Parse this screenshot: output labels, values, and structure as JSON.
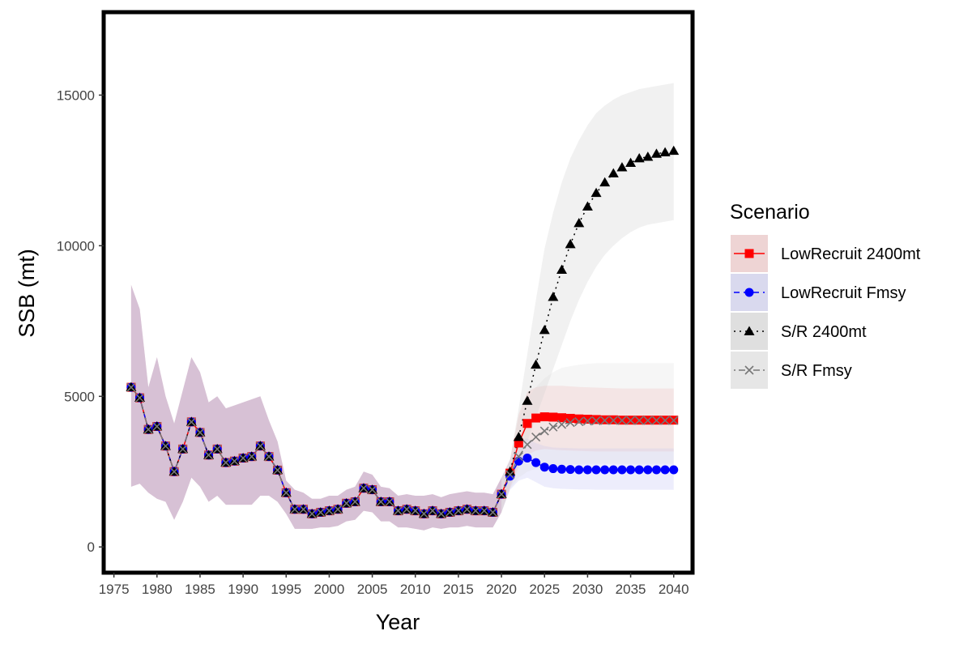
{
  "chart_data": {
    "type": "line",
    "xlabel": "Year",
    "ylabel": "SSB (mt)",
    "xlim": [
      1974,
      2042
    ],
    "ylim": [
      -800,
      17700
    ],
    "x_ticks": [
      "1975",
      "1980",
      "1985",
      "1990",
      "1995",
      "2000",
      "2005",
      "2010",
      "2015",
      "2020",
      "2025",
      "2030",
      "2035",
      "2040"
    ],
    "y_ticks": [
      "0",
      "5000",
      "10000",
      "15000"
    ],
    "grid": false,
    "legend_position": "right",
    "legend": {
      "title": "Scenario",
      "entries": [
        "LowRecruit 2400mt",
        "LowRecruit Fmsy",
        "S/R 2400mt",
        "S/R Fmsy"
      ]
    },
    "historical": {
      "years": [
        1977,
        1978,
        1979,
        1980,
        1981,
        1982,
        1983,
        1984,
        1985,
        1986,
        1987,
        1988,
        1989,
        1990,
        1991,
        1992,
        1993,
        1994,
        1995,
        1996,
        1997,
        1998,
        1999,
        2000,
        2001,
        2002,
        2003,
        2004,
        2005,
        2006,
        2007,
        2008,
        2009,
        2010,
        2011,
        2012,
        2013,
        2014,
        2015,
        2016,
        2017,
        2018,
        2019,
        2020
      ],
      "ssb": [
        5300,
        4950,
        3900,
        4000,
        3350,
        2500,
        3250,
        4150,
        3800,
        3050,
        3250,
        2800,
        2850,
        2950,
        3000,
        3350,
        3000,
        2550,
        1800,
        1250,
        1250,
        1100,
        1150,
        1200,
        1250,
        1450,
        1500,
        1950,
        1900,
        1500,
        1500,
        1200,
        1250,
        1200,
        1100,
        1200,
        1100,
        1150,
        1200,
        1250,
        1200,
        1200,
        1150,
        1750
      ],
      "upper": [
        8700,
        7900,
        5300,
        6300,
        5000,
        4100,
        5200,
        6300,
        5800,
        4800,
        5000,
        4600,
        4700,
        4800,
        4900,
        5000,
        4200,
        3500,
        2200,
        1900,
        1800,
        1600,
        1600,
        1700,
        1700,
        1900,
        2000,
        2500,
        2400,
        2000,
        1950,
        1700,
        1750,
        1700,
        1700,
        1750,
        1650,
        1750,
        1800,
        1850,
        1800,
        1800,
        1750,
        2300
      ],
      "lower": [
        2000,
        2100,
        1800,
        1600,
        1500,
        900,
        1500,
        2300,
        2000,
        1500,
        1700,
        1400,
        1400,
        1400,
        1400,
        1700,
        1700,
        1500,
        1100,
        600,
        600,
        600,
        650,
        650,
        700,
        850,
        900,
        1200,
        1150,
        850,
        850,
        650,
        650,
        600,
        550,
        650,
        600,
        650,
        650,
        700,
        650,
        650,
        650,
        1150
      ]
    },
    "series": [
      {
        "name": "LowRecruit 2400mt",
        "color": "#ff0000",
        "fill_color": "#f4a9a9",
        "marker": "square",
        "line": "solid",
        "x": [
          2021,
          2022,
          2023,
          2024,
          2025,
          2026,
          2027,
          2028,
          2029,
          2030,
          2031,
          2032,
          2033,
          2034,
          2035,
          2036,
          2037,
          2038,
          2039,
          2040
        ],
        "values": [
          2450,
          3450,
          4100,
          4280,
          4320,
          4310,
          4290,
          4270,
          4250,
          4240,
          4230,
          4220,
          4220,
          4210,
          4210,
          4210,
          4210,
          4210,
          4210,
          4210
        ],
        "upper": [
          2900,
          4400,
          5150,
          5300,
          5350,
          5350,
          5350,
          5330,
          5310,
          5300,
          5290,
          5280,
          5270,
          5260,
          5260,
          5260,
          5260,
          5260,
          5260,
          5260
        ],
        "lower": [
          1950,
          2650,
          3050,
          3200,
          3250,
          3230,
          3210,
          3200,
          3190,
          3180,
          3170,
          3170,
          3170,
          3170,
          3170,
          3170,
          3170,
          3170,
          3170,
          3170
        ]
      },
      {
        "name": "LowRecruit Fmsy",
        "color": "#0000ff",
        "fill_color": "#b8b8f4",
        "marker": "circle",
        "line": "dashed",
        "x": [
          2021,
          2022,
          2023,
          2024,
          2025,
          2026,
          2027,
          2028,
          2029,
          2030,
          2031,
          2032,
          2033,
          2034,
          2035,
          2036,
          2037,
          2038,
          2039,
          2040
        ],
        "values": [
          2350,
          2850,
          2950,
          2800,
          2650,
          2600,
          2580,
          2570,
          2560,
          2560,
          2560,
          2560,
          2560,
          2560,
          2560,
          2560,
          2560,
          2560,
          2560,
          2560
        ],
        "upper": [
          2900,
          3550,
          3600,
          3450,
          3350,
          3300,
          3290,
          3280,
          3270,
          3270,
          3270,
          3270,
          3270,
          3270,
          3270,
          3270,
          3270,
          3270,
          3270,
          3270
        ],
        "lower": [
          1900,
          2200,
          2300,
          2150,
          2000,
          1950,
          1930,
          1920,
          1910,
          1910,
          1900,
          1900,
          1900,
          1900,
          1900,
          1900,
          1900,
          1900,
          1900,
          1900
        ]
      },
      {
        "name": "S/R 2400mt",
        "color": "#000000",
        "fill_color": "#c9c9c9",
        "marker": "triangle",
        "line": "dotted",
        "x": [
          2021,
          2022,
          2023,
          2024,
          2025,
          2026,
          2027,
          2028,
          2029,
          2030,
          2031,
          2032,
          2033,
          2034,
          2035,
          2036,
          2037,
          2038,
          2039,
          2040
        ],
        "values": [
          2500,
          3650,
          4850,
          6050,
          7200,
          8300,
          9200,
          10050,
          10750,
          11300,
          11750,
          12100,
          12400,
          12600,
          12750,
          12900,
          12950,
          13050,
          13100,
          13150
        ],
        "upper": [
          2900,
          4600,
          6400,
          8200,
          9900,
          11100,
          12100,
          12900,
          13500,
          14000,
          14400,
          14650,
          14850,
          15000,
          15100,
          15200,
          15250,
          15300,
          15350,
          15400
        ],
        "lower": [
          2000,
          2800,
          3500,
          4300,
          5100,
          5900,
          6700,
          7500,
          8200,
          8800,
          9300,
          9700,
          10000,
          10250,
          10450,
          10600,
          10700,
          10750,
          10800,
          10850
        ]
      },
      {
        "name": "S/R Fmsy",
        "color": "#777777",
        "fill_color": "#dddddd",
        "marker": "x",
        "line": "dashdot",
        "x": [
          2021,
          2022,
          2023,
          2024,
          2025,
          2026,
          2027,
          2028,
          2029,
          2030,
          2031,
          2032,
          2033,
          2034,
          2035,
          2036,
          2037,
          2038,
          2039,
          2040
        ],
        "values": [
          2400,
          3000,
          3400,
          3650,
          3850,
          3980,
          4070,
          4130,
          4160,
          4180,
          4190,
          4200,
          4200,
          4200,
          4200,
          4200,
          4200,
          4200,
          4200,
          4200
        ],
        "upper": [
          2900,
          4300,
          4900,
          5300,
          5600,
          5800,
          5950,
          6000,
          6050,
          6080,
          6100,
          6100,
          6100,
          6100,
          6100,
          6100,
          6100,
          6100,
          6100,
          6100
        ],
        "lower": [
          1950,
          2300,
          2500,
          2600,
          2650,
          2700,
          2720,
          2740,
          2750,
          2760,
          2760,
          2760,
          2760,
          2760,
          2760,
          2760,
          2760,
          2760,
          2760,
          2760
        ]
      }
    ]
  }
}
